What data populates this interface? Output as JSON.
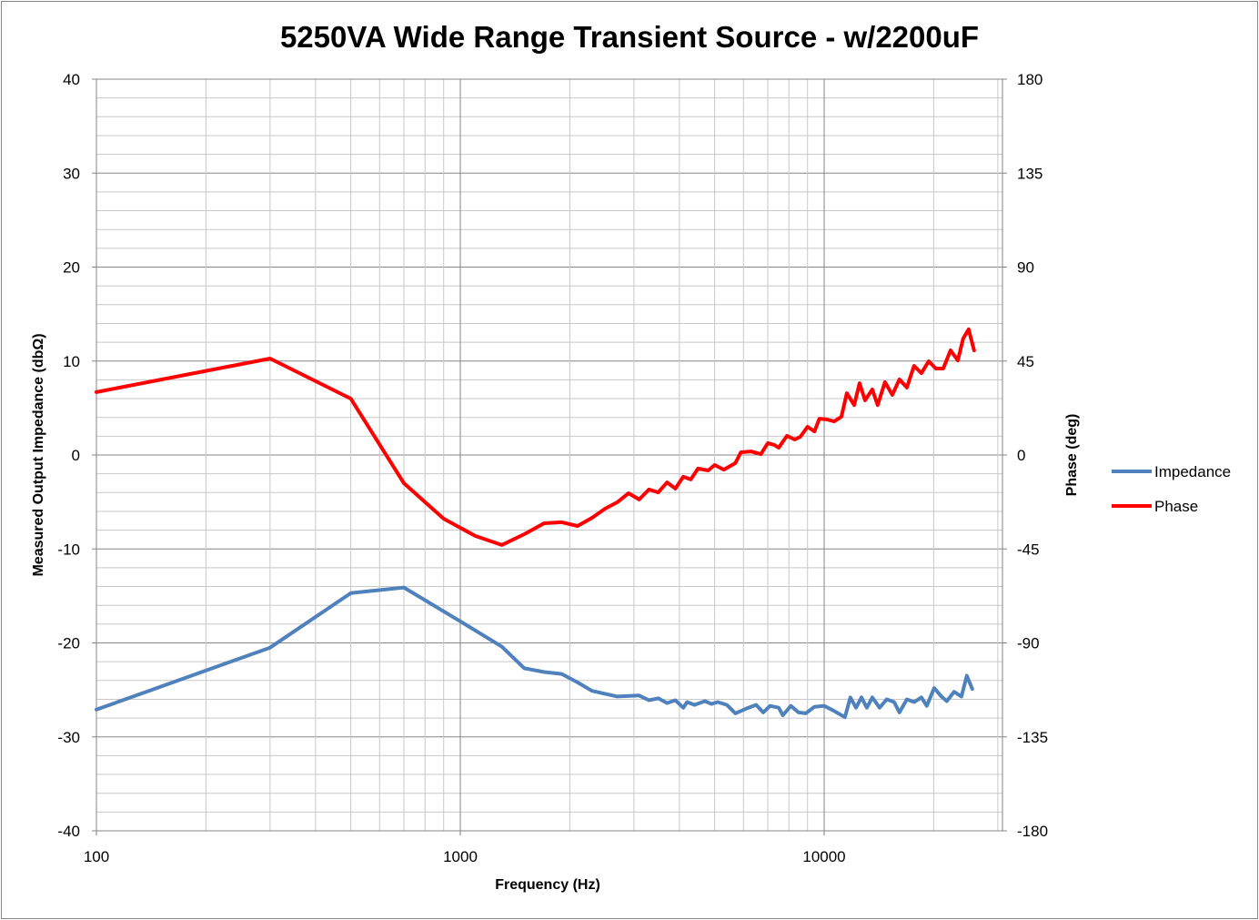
{
  "chart_data": {
    "type": "line",
    "title": "5250VA Wide Range Transient Source - w/2200uF",
    "xlabel": "Frequency (Hz)",
    "ylabel": "Measured Output Impedance (dbΩ)",
    "y2label": "Phase (deg)",
    "xscale": "log",
    "xlim": [
      100,
      30900
    ],
    "ylim": [
      -40,
      40
    ],
    "y2lim": [
      -180,
      180
    ],
    "x_ticks": [
      100,
      1000,
      10000
    ],
    "x_tick_labels": [
      "100",
      "1000",
      "10000"
    ],
    "y_ticks": [
      40,
      30,
      20,
      10,
      0,
      -10,
      -20,
      -30,
      -40
    ],
    "y_tick_labels": [
      "40",
      "30",
      "20",
      "10",
      "0",
      "-10",
      "-20",
      "-30",
      "-40"
    ],
    "y2_ticks": [
      180,
      135,
      90,
      45,
      0,
      -45,
      -90,
      -135,
      -180
    ],
    "y2_tick_labels": [
      "180",
      "135",
      "90",
      "45",
      "0",
      "-45",
      "-90",
      "-135",
      "-180"
    ],
    "grid": true,
    "legend_position": "right",
    "series": [
      {
        "name": "Impedance",
        "axis": "left",
        "color": "#4F81BD",
        "x": [
          100,
          300,
          500,
          700,
          1000,
          1300,
          1500,
          1700,
          1900,
          2100,
          2300,
          2700,
          3100,
          3300,
          3500,
          3700,
          3900,
          4100,
          4200,
          4400,
          4700,
          4900,
          5100,
          5400,
          5700,
          6100,
          6500,
          6800,
          7100,
          7500,
          7700,
          8100,
          8500,
          8900,
          9400,
          10000,
          10600,
          11400,
          11800,
          12230,
          12660,
          13100,
          13560,
          14200,
          14860,
          15570,
          16100,
          16870,
          17660,
          18500,
          19140,
          20050,
          21000,
          21730,
          22750,
          23830,
          24660,
          25530
        ],
        "y": [
          -27.1,
          -20.5,
          -14.7,
          -14.1,
          -17.7,
          -20.4,
          -22.7,
          -23.1,
          -23.3,
          -24.2,
          -25.1,
          -25.7,
          -25.6,
          -26.1,
          -25.9,
          -26.4,
          -26.1,
          -26.9,
          -26.3,
          -26.6,
          -26.2,
          -26.5,
          -26.3,
          -26.6,
          -27.5,
          -27.0,
          -26.6,
          -27.4,
          -26.7,
          -26.9,
          -27.7,
          -26.7,
          -27.4,
          -27.5,
          -26.8,
          -26.7,
          -27.2,
          -27.9,
          -25.8,
          -26.9,
          -25.8,
          -26.9,
          -25.8,
          -26.9,
          -26.0,
          -26.3,
          -27.4,
          -26.0,
          -26.3,
          -25.8,
          -26.7,
          -24.8,
          -25.7,
          -26.2,
          -25.2,
          -25.7,
          -23.5,
          -24.9
        ]
      },
      {
        "name": "Phase",
        "axis": "right",
        "color": "#FF0000",
        "x": [
          100,
          300,
          500,
          700,
          900,
          1100,
          1300,
          1500,
          1700,
          1900,
          2100,
          2300,
          2500,
          2700,
          2900,
          3100,
          3300,
          3500,
          3700,
          3900,
          4100,
          4300,
          4500,
          4800,
          5000,
          5300,
          5700,
          5900,
          6300,
          6700,
          7000,
          7300,
          7500,
          7900,
          8300,
          8600,
          9000,
          9400,
          9700,
          10180,
          10650,
          11150,
          11540,
          12090,
          12510,
          12950,
          13560,
          14030,
          14690,
          15390,
          16100,
          16870,
          17660,
          18500,
          19370,
          20280,
          21240,
          22240,
          23290,
          24100,
          24950,
          25820
        ],
        "y": [
          30.1,
          46.2,
          27.0,
          -13.5,
          -30.5,
          -38.8,
          -43.1,
          -37.9,
          -32.7,
          -32.2,
          -34.0,
          -30.1,
          -25.7,
          -22.6,
          -18.3,
          -21.3,
          -16.5,
          -17.9,
          -13.1,
          -16.1,
          -10.4,
          -11.7,
          -6.5,
          -7.4,
          -4.8,
          -7.0,
          -3.9,
          1.3,
          1.7,
          0.4,
          5.7,
          4.8,
          3.5,
          9.2,
          7.4,
          8.7,
          13.5,
          11.3,
          17.4,
          17.0,
          16.1,
          18.3,
          29.6,
          23.9,
          34.4,
          26.2,
          31.4,
          23.9,
          34.9,
          28.8,
          36.2,
          32.3,
          42.7,
          39.2,
          44.9,
          41.4,
          41.4,
          50.1,
          45.3,
          55.8,
          60.2,
          50.1
        ]
      }
    ]
  }
}
